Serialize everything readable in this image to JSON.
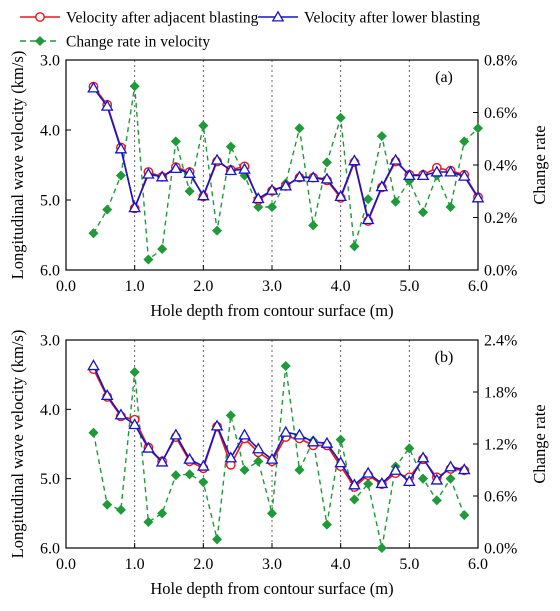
{
  "legend": {
    "items": [
      {
        "label": "Velocity after adjacent blasting",
        "color": "#e8161b",
        "marker": "circle",
        "dash": false
      },
      {
        "label": "Velocity after lower blasting",
        "color": "#1414c8",
        "marker": "triangle",
        "dash": false
      },
      {
        "label": "Change rate in velocity",
        "color": "#1f9a38",
        "marker": "diamond",
        "dash": true
      }
    ]
  },
  "chart_data": [
    {
      "type": "line",
      "panel_label": "(a)",
      "xlabel": "Hole depth from contour surface (m)",
      "ylabel": "Longitudinal wave velocity (km/s)",
      "y2label": "Change rate",
      "xlim": [
        0.0,
        6.0
      ],
      "ylim": [
        3.0,
        6.0
      ],
      "y_inverted": true,
      "y2lim": [
        0.0,
        0.8
      ],
      "x_ticks": [
        "0.0",
        "1.0",
        "2.0",
        "3.0",
        "4.0",
        "5.0",
        "6.0"
      ],
      "y_ticks": [
        "3.0",
        "4.0",
        "5.0",
        "6.0"
      ],
      "y2_ticks": [
        "0.0%",
        "0.2%",
        "0.4%",
        "0.6%",
        "0.8%"
      ],
      "grid": "vertical dotted",
      "series": [
        {
          "name": "Velocity after adjacent blasting",
          "axis": "left",
          "x": [
            0.4,
            0.6,
            0.8,
            1.0,
            1.2,
            1.4,
            1.6,
            1.8,
            2.0,
            2.2,
            2.4,
            2.6,
            2.8,
            3.0,
            3.2,
            3.4,
            3.6,
            3.8,
            4.0,
            4.2,
            4.4,
            4.6,
            4.8,
            5.0,
            5.2,
            5.4,
            5.6,
            5.8,
            6.0
          ],
          "y": [
            3.38,
            3.64,
            4.25,
            5.12,
            4.6,
            4.67,
            4.53,
            4.6,
            4.95,
            4.45,
            4.57,
            4.52,
            5.0,
            4.87,
            4.8,
            4.68,
            4.68,
            4.72,
            4.97,
            4.46,
            5.3,
            4.82,
            4.45,
            4.64,
            4.64,
            4.54,
            4.58,
            4.64,
            4.96
          ]
        },
        {
          "name": "Velocity after lower blasting",
          "axis": "left",
          "x": [
            0.4,
            0.6,
            0.8,
            1.0,
            1.2,
            1.4,
            1.6,
            1.8,
            2.0,
            2.2,
            2.4,
            2.6,
            2.8,
            3.0,
            3.2,
            3.4,
            3.6,
            3.8,
            4.0,
            4.2,
            4.4,
            4.6,
            4.8,
            5.0,
            5.2,
            5.4,
            5.6,
            5.8,
            6.0
          ],
          "y": [
            3.4,
            3.66,
            4.27,
            5.11,
            4.63,
            4.67,
            4.55,
            4.62,
            4.94,
            4.43,
            4.58,
            4.56,
            4.98,
            4.86,
            4.8,
            4.67,
            4.68,
            4.7,
            4.95,
            4.44,
            5.28,
            4.81,
            4.43,
            4.65,
            4.65,
            4.6,
            4.6,
            4.66,
            4.97
          ]
        },
        {
          "name": "Change rate in velocity",
          "axis": "right",
          "x": [
            0.4,
            0.6,
            0.8,
            1.0,
            1.2,
            1.4,
            1.6,
            1.8,
            2.0,
            2.2,
            2.4,
            2.6,
            2.8,
            3.0,
            3.2,
            3.4,
            3.6,
            3.8,
            4.0,
            4.2,
            4.4,
            4.6,
            4.8,
            5.0,
            5.2,
            5.4,
            5.6,
            5.8,
            6.0
          ],
          "y": [
            0.14,
            0.23,
            0.36,
            0.7,
            0.04,
            0.08,
            0.49,
            0.3,
            0.55,
            0.15,
            0.47,
            0.36,
            0.24,
            0.24,
            0.33,
            0.54,
            0.17,
            0.41,
            0.58,
            0.09,
            0.27,
            0.51,
            0.26,
            0.34,
            0.22,
            0.36,
            0.24,
            0.49,
            0.54
          ]
        }
      ]
    },
    {
      "type": "line",
      "panel_label": "(b)",
      "xlabel": "Hole depth  from contour surface (m)",
      "ylabel": "Longitudinal wave velocity (km/s)",
      "y2label": "Change rate",
      "xlim": [
        0.0,
        6.0
      ],
      "ylim": [
        3.0,
        6.0
      ],
      "y_inverted": true,
      "y2lim": [
        0.0,
        2.4
      ],
      "x_ticks": [
        "0.0",
        "1.0",
        "2.0",
        "3.0",
        "4.0",
        "5.0",
        "6.0"
      ],
      "y_ticks": [
        "3.0",
        "4.0",
        "5.0",
        "6.0"
      ],
      "y2_ticks": [
        "0.0%",
        "0.6%",
        "1.2%",
        "1.8%",
        "2.4%"
      ],
      "grid": "vertical dotted",
      "series": [
        {
          "name": "Velocity after adjacent blasting",
          "axis": "left",
          "x": [
            0.4,
            0.6,
            0.8,
            1.0,
            1.2,
            1.4,
            1.6,
            1.8,
            2.0,
            2.2,
            2.4,
            2.6,
            2.8,
            3.0,
            3.2,
            3.4,
            3.6,
            3.8,
            4.0,
            4.2,
            4.4,
            4.6,
            4.8,
            5.0,
            5.2,
            5.4,
            5.6,
            5.8
          ],
          "y": [
            3.42,
            3.82,
            4.1,
            4.15,
            4.55,
            4.75,
            4.4,
            4.75,
            4.85,
            4.25,
            4.8,
            4.42,
            4.62,
            4.75,
            4.4,
            4.42,
            4.52,
            4.52,
            4.82,
            5.12,
            4.95,
            5.08,
            4.92,
            4.98,
            4.72,
            4.98,
            4.86,
            4.88
          ]
        },
        {
          "name": "Velocity after lower blasting",
          "axis": "left",
          "x": [
            0.4,
            0.6,
            0.8,
            1.0,
            1.2,
            1.4,
            1.6,
            1.8,
            2.0,
            2.2,
            2.4,
            2.6,
            2.8,
            3.0,
            3.2,
            3.4,
            3.6,
            3.8,
            4.0,
            4.2,
            4.4,
            4.6,
            4.8,
            5.0,
            5.2,
            5.4,
            5.6,
            5.8
          ],
          "y": [
            3.37,
            3.8,
            4.08,
            4.22,
            4.56,
            4.76,
            4.37,
            4.72,
            4.82,
            4.24,
            4.7,
            4.37,
            4.57,
            4.72,
            4.33,
            4.37,
            4.47,
            4.49,
            4.77,
            5.09,
            4.92,
            5.07,
            4.88,
            5.04,
            4.7,
            5.02,
            4.83,
            4.87
          ]
        },
        {
          "name": "Change rate in velocity",
          "axis": "right",
          "x": [
            0.4,
            0.6,
            0.8,
            1.0,
            1.2,
            1.4,
            1.6,
            1.8,
            2.0,
            2.2,
            2.4,
            2.6,
            2.8,
            3.0,
            3.2,
            3.4,
            3.6,
            3.8,
            4.0,
            4.2,
            4.4,
            4.6,
            4.8,
            5.0,
            5.2,
            5.4,
            5.6,
            5.8
          ],
          "y": [
            1.33,
            0.5,
            0.44,
            2.03,
            0.3,
            0.4,
            0.84,
            0.85,
            0.76,
            0.1,
            1.53,
            0.9,
            1.0,
            0.4,
            2.1,
            0.9,
            1.24,
            0.27,
            1.25,
            0.56,
            0.74,
            0.0,
            0.94,
            1.15,
            0.8,
            0.55,
            0.8,
            0.38
          ]
        }
      ]
    }
  ]
}
